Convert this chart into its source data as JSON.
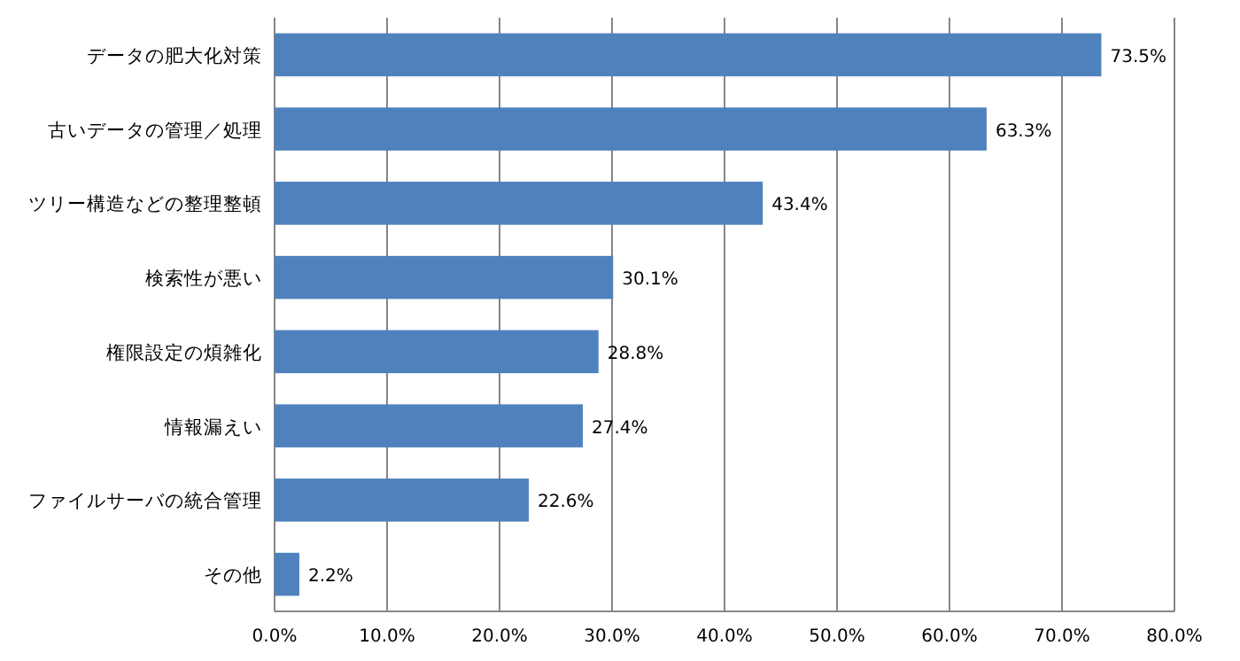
{
  "chart_data": {
    "type": "bar",
    "orientation": "horizontal",
    "categories": [
      "データの肥大化対策",
      "古いデータの管理／処理",
      "ツリー構造などの整理整頓",
      "検索性が悪い",
      "権限設定の煩雑化",
      "情報漏えい",
      "ファイルサーバの統合管理",
      "その他"
    ],
    "values": [
      73.5,
      63.3,
      43.4,
      30.1,
      28.8,
      27.4,
      22.6,
      2.2
    ],
    "value_labels": [
      "73.5%",
      "63.3%",
      "43.4%",
      "30.1%",
      "28.8%",
      "27.4%",
      "22.6%",
      "2.2%"
    ],
    "color": "#4f81bd",
    "xlim": [
      0,
      80
    ],
    "xticks": [
      {
        "value": 0,
        "label": "0.0%"
      },
      {
        "value": 10,
        "label": "10.0%"
      },
      {
        "value": 20,
        "label": "20.0%"
      },
      {
        "value": 30,
        "label": "30.0%"
      },
      {
        "value": 40,
        "label": "40.0%"
      },
      {
        "value": 50,
        "label": "50.0%"
      },
      {
        "value": 60,
        "label": "60.0%"
      },
      {
        "value": 70,
        "label": "70.0%"
      },
      {
        "value": 80,
        "label": "80.0%"
      }
    ],
    "grid": "x"
  }
}
